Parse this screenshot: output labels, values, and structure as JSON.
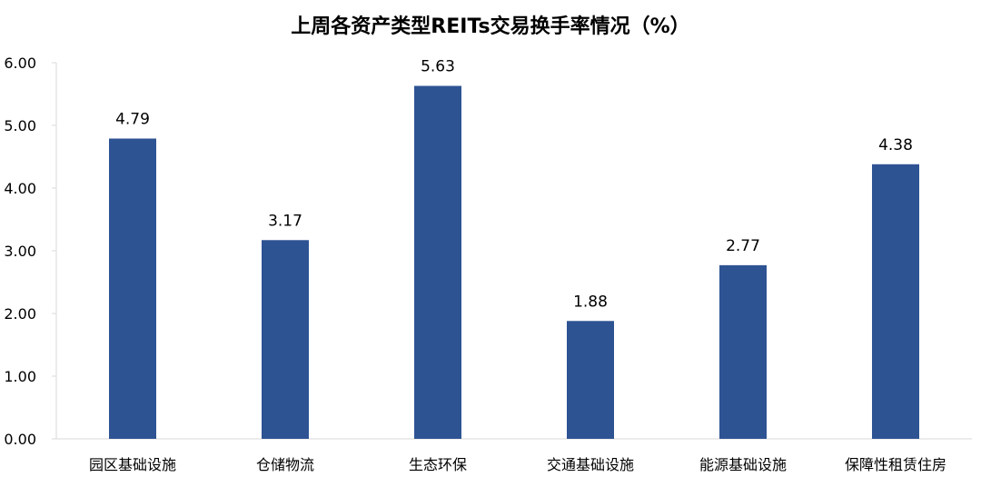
{
  "colors": {
    "bar": "#2e5393",
    "axis": "#d9d9d9",
    "text": "#000000"
  },
  "chart_data": {
    "type": "bar",
    "title": "上周各资产类型REITs交易换手率情况（%）",
    "xlabel": "",
    "ylabel": "",
    "categories": [
      "园区基础设施",
      "仓储物流",
      "生态环保",
      "交通基础设施",
      "能源基础设施",
      "保障性租赁住房"
    ],
    "values": [
      4.79,
      3.17,
      5.63,
      1.88,
      2.77,
      4.38
    ],
    "data_labels": [
      "4.79",
      "3.17",
      "5.63",
      "1.88",
      "2.77",
      "4.38"
    ],
    "ylim": [
      0,
      6
    ],
    "yticks": [
      0,
      1,
      2,
      3,
      4,
      5,
      6
    ],
    "ytick_labels": [
      "0.00",
      "1.00",
      "2.00",
      "3.00",
      "4.00",
      "5.00",
      "6.00"
    ],
    "grid": false,
    "legend": "none"
  }
}
